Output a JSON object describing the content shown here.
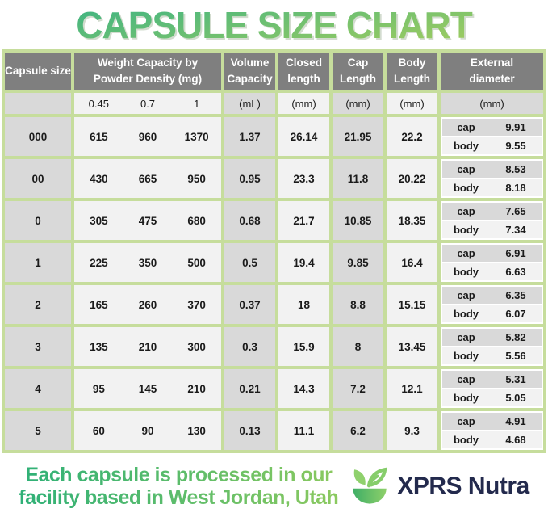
{
  "title": "CAPSULE SIZE CHART",
  "table": {
    "headers": {
      "capsule_size": "Capsule size",
      "weight_line1": "Weight Capacity by",
      "weight_line2": "Powder Density (mg)",
      "volume_line1": "Volume",
      "volume_line2": "Capacity",
      "closed_line1": "Closed",
      "closed_line2": "length",
      "cap_line1": "Cap",
      "cap_line2": "Length",
      "body_line1": "Body",
      "body_line2": "Length",
      "external_line1": "External",
      "external_line2": "diameter"
    },
    "units": {
      "densities": [
        "0.45",
        "0.7",
        "1"
      ],
      "volume": "(mL)",
      "closed": "(mm)",
      "cap": "(mm)",
      "body": "(mm)",
      "external": "(mm)"
    },
    "external_row_labels": {
      "cap": "cap",
      "body": "body"
    },
    "rows": [
      {
        "size": "000",
        "weights": [
          "615",
          "960",
          "1370"
        ],
        "volume": "1.37",
        "closed": "26.14",
        "cap_length": "21.95",
        "body_length": "22.2",
        "diameter_cap": "9.91",
        "diameter_body": "9.55"
      },
      {
        "size": "00",
        "weights": [
          "430",
          "665",
          "950"
        ],
        "volume": "0.95",
        "closed": "23.3",
        "cap_length": "11.8",
        "body_length": "20.22",
        "diameter_cap": "8.53",
        "diameter_body": "8.18"
      },
      {
        "size": "0",
        "weights": [
          "305",
          "475",
          "680"
        ],
        "volume": "0.68",
        "closed": "21.7",
        "cap_length": "10.85",
        "body_length": "18.35",
        "diameter_cap": "7.65",
        "diameter_body": "7.34"
      },
      {
        "size": "1",
        "weights": [
          "225",
          "350",
          "500"
        ],
        "volume": "0.5",
        "closed": "19.4",
        "cap_length": "9.85",
        "body_length": "16.4",
        "diameter_cap": "6.91",
        "diameter_body": "6.63"
      },
      {
        "size": "2",
        "weights": [
          "165",
          "260",
          "370"
        ],
        "volume": "0.37",
        "closed": "18",
        "cap_length": "8.8",
        "body_length": "15.15",
        "diameter_cap": "6.35",
        "diameter_body": "6.07"
      },
      {
        "size": "3",
        "weights": [
          "135",
          "210",
          "300"
        ],
        "volume": "0.3",
        "closed": "15.9",
        "cap_length": "8",
        "body_length": "13.45",
        "diameter_cap": "5.82",
        "diameter_body": "5.56"
      },
      {
        "size": "4",
        "weights": [
          "95",
          "145",
          "210"
        ],
        "volume": "0.21",
        "closed": "14.3",
        "cap_length": "7.2",
        "body_length": "12.1",
        "diameter_cap": "5.31",
        "diameter_body": "5.05"
      },
      {
        "size": "5",
        "weights": [
          "60",
          "90",
          "130"
        ],
        "volume": "0.13",
        "closed": "11.1",
        "cap_length": "6.2",
        "body_length": "9.3",
        "diameter_cap": "4.91",
        "diameter_body": "4.68"
      }
    ]
  },
  "chart_data": {
    "type": "table",
    "title": "CAPSULE SIZE CHART",
    "columns": [
      "Capsule size",
      "Weight capacity @ 0.45 powder density (mg)",
      "Weight capacity @ 0.7 powder density (mg)",
      "Weight capacity @ 1 powder density (mg)",
      "Volume Capacity (mL)",
      "Closed length (mm)",
      "Cap Length (mm)",
      "Body Length (mm)",
      "External diameter cap (mm)",
      "External diameter body (mm)"
    ],
    "rows": [
      [
        "000",
        615,
        960,
        1370,
        1.37,
        26.14,
        21.95,
        22.2,
        9.91,
        9.55
      ],
      [
        "00",
        430,
        665,
        950,
        0.95,
        23.3,
        11.8,
        20.22,
        8.53,
        8.18
      ],
      [
        "0",
        305,
        475,
        680,
        0.68,
        21.7,
        10.85,
        18.35,
        7.65,
        7.34
      ],
      [
        "1",
        225,
        350,
        500,
        0.5,
        19.4,
        9.85,
        16.4,
        6.91,
        6.63
      ],
      [
        "2",
        165,
        260,
        370,
        0.37,
        18,
        8.8,
        15.15,
        6.35,
        6.07
      ],
      [
        "3",
        135,
        210,
        300,
        0.3,
        15.9,
        8,
        13.45,
        5.82,
        5.56
      ],
      [
        "4",
        95,
        145,
        210,
        0.21,
        14.3,
        7.2,
        12.1,
        5.31,
        5.05
      ],
      [
        "5",
        60,
        90,
        130,
        0.13,
        11.1,
        6.2,
        9.3,
        4.91,
        4.68
      ]
    ]
  },
  "footer": {
    "tagline_line1": "Each capsule is processed in our",
    "tagline_line2": "facility based in West Jordan, Utah",
    "brand": "XPRS Nutra"
  },
  "colors": {
    "header_bg": "#7f7f7f",
    "cell_gray": "#d9d9d9",
    "cell_light": "#f2f2f2",
    "border_green": "#c6dd9c",
    "title_green_top": "#3bb384",
    "title_green_bottom": "#a3cd5e",
    "brand_navy": "#232a4d",
    "logo_green": "#86cd6b"
  }
}
